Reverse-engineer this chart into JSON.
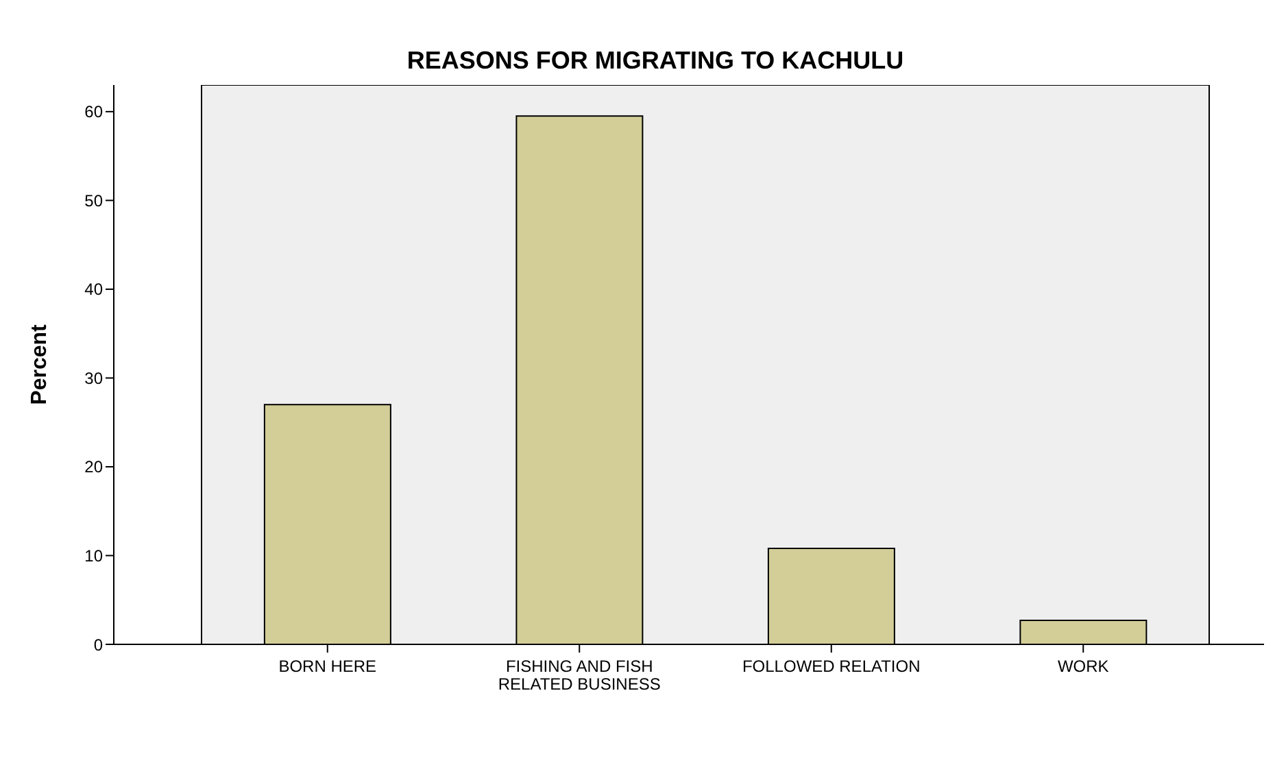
{
  "chart_data": {
    "type": "bar",
    "title": "REASONS FOR MIGRATING TO KACHULU",
    "ylabel": "Percent",
    "categories": [
      "BORN HERE",
      "FISHING AND FISH RELATED BUSINESS",
      "FOLLOWED RELATION",
      "WORK"
    ],
    "values": [
      27.0,
      59.5,
      10.8,
      2.7
    ],
    "color": "#d3ce98",
    "ylim": [
      0,
      63
    ],
    "yticks": [
      0,
      10,
      20,
      30,
      40,
      50,
      60
    ],
    "grid": false,
    "legend": false
  }
}
